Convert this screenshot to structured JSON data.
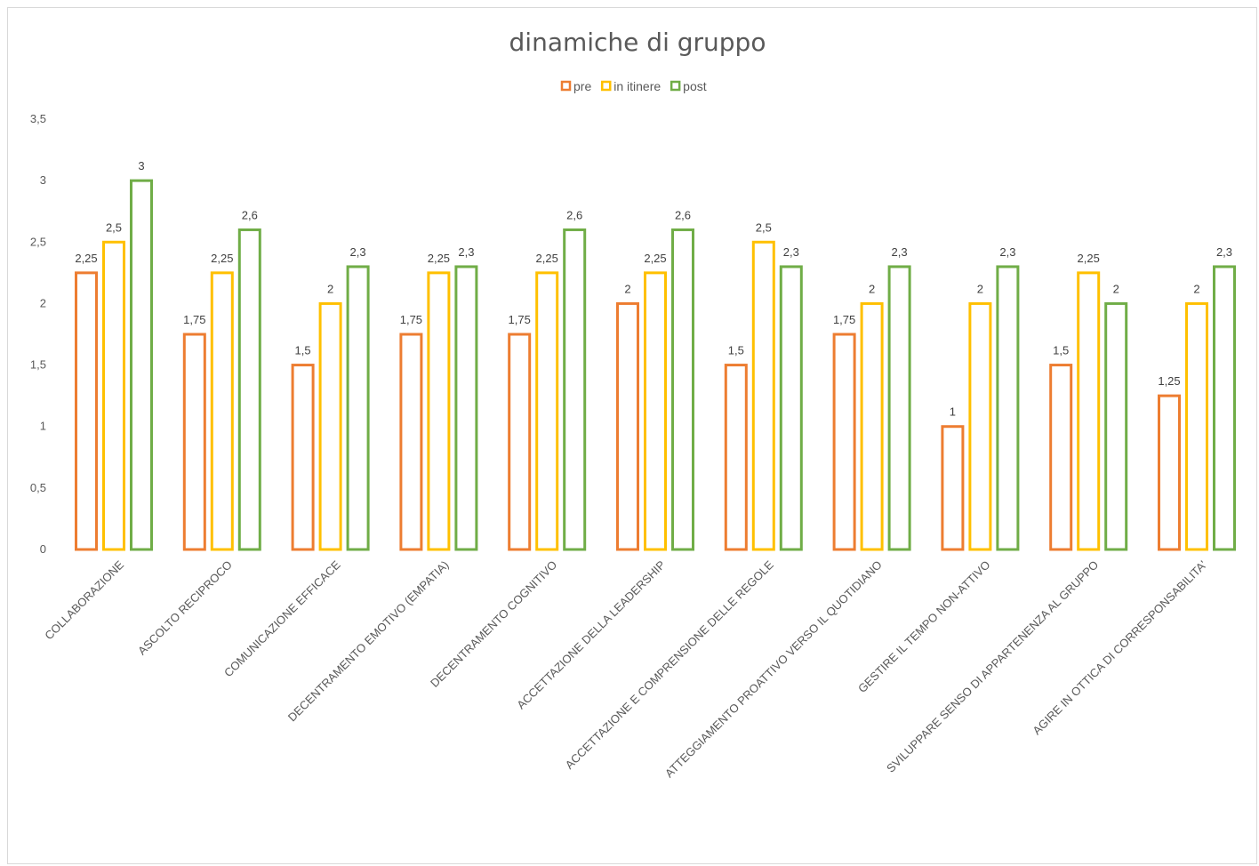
{
  "chart_data": {
    "type": "bar",
    "title": "dinamiche di gruppo",
    "xlabel": "",
    "ylabel": "",
    "ylim": [
      0,
      3.5
    ],
    "yticks": [
      "0",
      "0,5",
      "1",
      "1,5",
      "2",
      "2,5",
      "3",
      "3,5"
    ],
    "grid": false,
    "legend_position": "top",
    "categories": [
      "COLLABORAZIONE",
      "ASCOLTO RECIPROCO",
      "COMUNICAZIONE EFFICACE",
      "DECENTRAMENTO EMOTIVO (EMPATIA)",
      "DECENTRAMENTO COGNITIVO",
      "ACCETTAZIONE DELLA LEADERSHIP",
      "ACCETTAZIONE E COMPRENSIONE DELLE REGOLE",
      "ATTEGGIAMENTO PROATTIVO VERSO IL QUOTIDIANO",
      "GESTIRE IL TEMPO NON-ATTIVO",
      "SVILUPPARE SENSO DI APPARTENENZA AL GRUPPO",
      "AGIRE IN OTTICA DI CORRESPONSABILITA'"
    ],
    "series": [
      {
        "name": "pre",
        "color": "#ED7D31",
        "values": [
          2.25,
          1.75,
          1.5,
          1.75,
          1.75,
          2,
          1.5,
          1.75,
          1,
          1.5,
          1.25
        ],
        "labels": [
          "2,25",
          "1,75",
          "1,5",
          "1,75",
          "1,75",
          "2",
          "1,5",
          "1,75",
          "1",
          "1,5",
          "1,25"
        ]
      },
      {
        "name": "in itinere",
        "color": "#FFC000",
        "values": [
          2.5,
          2.25,
          2,
          2.25,
          2.25,
          2.25,
          2.5,
          2,
          2,
          2.25,
          2
        ],
        "labels": [
          "2,5",
          "2,25",
          "2",
          "2,25",
          "2,25",
          "2,25",
          "2,5",
          "2",
          "2",
          "2,25",
          "2"
        ]
      },
      {
        "name": "post",
        "color": "#70AD47",
        "values": [
          3,
          2.6,
          2.3,
          2.3,
          2.6,
          2.6,
          2.3,
          2.3,
          2.3,
          2,
          2.3
        ],
        "labels": [
          "3",
          "2,6",
          "2,3",
          "2,3",
          "2,6",
          "2,6",
          "2,3",
          "2,3",
          "2,3",
          "2",
          "2,3"
        ]
      }
    ]
  }
}
